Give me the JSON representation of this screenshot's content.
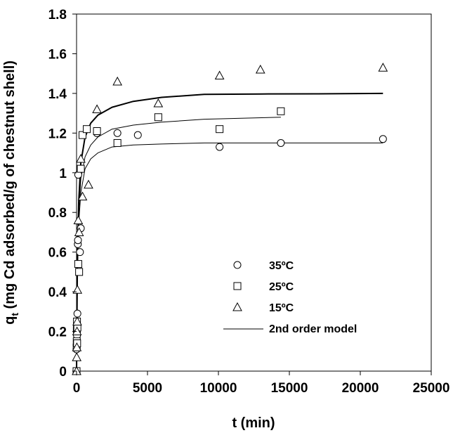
{
  "chart_data": {
    "type": "scatter",
    "title": "",
    "xlabel": "t (min)",
    "ylabel": {
      "prefix": "q",
      "subscript": "t",
      "rest": " (mg Cd adsorbed/g of chestnut shell)"
    },
    "xlim": [
      0,
      25000
    ],
    "ylim": [
      0,
      1.8
    ],
    "xticks": [
      0,
      5000,
      10000,
      15000,
      20000,
      25000
    ],
    "yticks": [
      0,
      0.2,
      0.4,
      0.6,
      0.8,
      1,
      1.2,
      1.4,
      1.6,
      1.8
    ],
    "xtick_labels": [
      "0",
      "5000",
      "10000",
      "15000",
      "20000",
      "25000"
    ],
    "ytick_labels": [
      "0",
      "0.2",
      "0.4",
      "0.6",
      "0.8",
      "1",
      "1.2",
      "1.4",
      "1.6",
      "1.8"
    ],
    "grid": false,
    "legend_position": "center-right",
    "legend": [
      {
        "label": "35ºC",
        "marker": "circle"
      },
      {
        "label": "25ºC",
        "marker": "square"
      },
      {
        "label": "15ºC",
        "marker": "triangle"
      },
      {
        "label": "2nd order model",
        "marker": "line"
      }
    ],
    "series": [
      {
        "name": "35ºC",
        "marker": "circle",
        "points": [
          [
            0,
            0.11
          ],
          [
            10,
            0.13
          ],
          [
            20,
            0.15
          ],
          [
            30,
            0.18
          ],
          [
            45,
            0.22
          ],
          [
            60,
            0.29
          ],
          [
            90,
            0.64
          ],
          [
            100,
            0.66
          ],
          [
            120,
            0.99
          ],
          [
            240,
            0.6
          ],
          [
            300,
            0.72
          ],
          [
            1440,
            1.2
          ],
          [
            2880,
            1.2
          ],
          [
            4320,
            1.19
          ],
          [
            10080,
            1.13
          ],
          [
            14400,
            1.15
          ],
          [
            21600,
            1.17
          ]
        ]
      },
      {
        "name": "25ºC",
        "marker": "square",
        "points": [
          [
            0,
            0.0
          ],
          [
            10,
            0.12
          ],
          [
            15,
            0.15
          ],
          [
            20,
            0.21
          ],
          [
            30,
            0.25
          ],
          [
            40,
            0.14
          ],
          [
            60,
            0.22
          ],
          [
            120,
            0.54
          ],
          [
            180,
            0.5
          ],
          [
            300,
            1.02
          ],
          [
            420,
            1.19
          ],
          [
            720,
            1.22
          ],
          [
            1440,
            1.21
          ],
          [
            2880,
            1.15
          ],
          [
            5760,
            1.28
          ],
          [
            10080,
            1.22
          ],
          [
            14400,
            1.31
          ]
        ]
      },
      {
        "name": "15ºC",
        "marker": "triangle",
        "points": [
          [
            0,
            0.0
          ],
          [
            10,
            0.07
          ],
          [
            20,
            0.12
          ],
          [
            30,
            0.2
          ],
          [
            45,
            0.25
          ],
          [
            60,
            0.41
          ],
          [
            120,
            0.76
          ],
          [
            180,
            0.7
          ],
          [
            300,
            1.07
          ],
          [
            420,
            0.88
          ],
          [
            840,
            0.94
          ],
          [
            1440,
            1.32
          ],
          [
            2880,
            1.46
          ],
          [
            5760,
            1.35
          ],
          [
            10080,
            1.49
          ],
          [
            12960,
            1.52
          ],
          [
            21600,
            1.53
          ]
        ]
      }
    ],
    "model_curves": [
      {
        "name": "2nd order model",
        "for_series": "15ºC",
        "weight": "bold",
        "points": [
          [
            0,
            0.0
          ],
          [
            60,
            0.55
          ],
          [
            150,
            0.85
          ],
          [
            300,
            1.05
          ],
          [
            600,
            1.18
          ],
          [
            1000,
            1.25
          ],
          [
            1500,
            1.29
          ],
          [
            2500,
            1.33
          ],
          [
            4000,
            1.36
          ],
          [
            6000,
            1.38
          ],
          [
            9000,
            1.395
          ],
          [
            13000,
            1.397
          ],
          [
            17000,
            1.398
          ],
          [
            21600,
            1.4
          ]
        ]
      },
      {
        "name": "2nd order model",
        "for_series": "25ºC",
        "weight": "normal",
        "points": [
          [
            0,
            0.0
          ],
          [
            60,
            0.5
          ],
          [
            150,
            0.78
          ],
          [
            300,
            0.97
          ],
          [
            600,
            1.08
          ],
          [
            1000,
            1.14
          ],
          [
            1500,
            1.18
          ],
          [
            2500,
            1.22
          ],
          [
            4000,
            1.24
          ],
          [
            6000,
            1.255
          ],
          [
            9000,
            1.27
          ],
          [
            14400,
            1.28
          ]
        ]
      },
      {
        "name": "2nd order model",
        "for_series": "35ºC",
        "weight": "normal",
        "points": [
          [
            0,
            0.0
          ],
          [
            60,
            0.48
          ],
          [
            150,
            0.74
          ],
          [
            300,
            0.9
          ],
          [
            600,
            1.02
          ],
          [
            1000,
            1.07
          ],
          [
            1500,
            1.1
          ],
          [
            2500,
            1.13
          ],
          [
            4000,
            1.14
          ],
          [
            6000,
            1.145
          ],
          [
            9000,
            1.15
          ],
          [
            14000,
            1.15
          ],
          [
            21600,
            1.15
          ]
        ]
      }
    ]
  }
}
